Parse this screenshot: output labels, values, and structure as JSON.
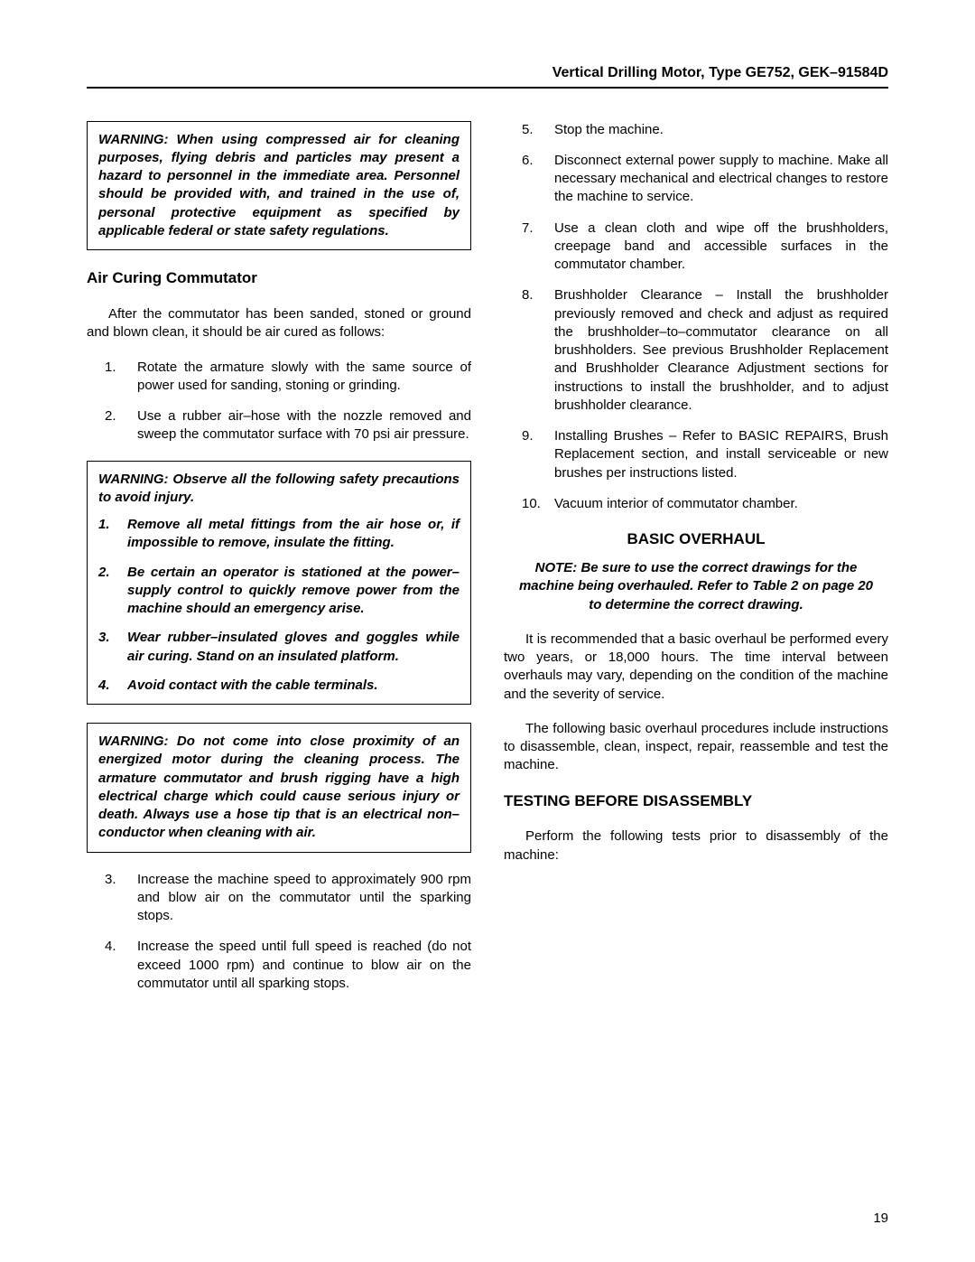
{
  "header": "Vertical Drilling Motor, Type GE752, GEK–91584D",
  "pageNumber": "19",
  "warning1": "WARNING: When using compressed air for cleaning purposes, flying debris and particles may present a hazard to personnel in the immediate area. Personnel should be provided with, and trained in the use of, personal protective equipment as specified by applicable federal or state safety regulations.",
  "sectionAirCuring": "Air Curing Commutator",
  "airCuringIntro": "After the commutator has been sanded, stoned or ground and blown clean, it should be air cured as follows:",
  "airSteps1": [
    {
      "n": "1.",
      "t": "Rotate the armature slowly with the same source of power used for sanding, stoning or grinding."
    },
    {
      "n": "2.",
      "t": "Use a rubber air–hose with the nozzle removed and sweep the commutator surface with 70 psi air pressure."
    }
  ],
  "warning2Intro": "WARNING: Observe all the following safety precautions to avoid injury.",
  "warning2Items": [
    {
      "n": "1.",
      "t": "Remove all metal fittings from the air hose or, if impossible to remove, insulate the fitting."
    },
    {
      "n": "2.",
      "t": "Be certain an operator is stationed at the power–supply control to quickly remove power from the machine should an emergency arise."
    },
    {
      "n": "3.",
      "t": "Wear rubber–insulated gloves and goggles while air curing. Stand on an insulated platform."
    },
    {
      "n": "4.",
      "t": "Avoid contact with the cable terminals."
    }
  ],
  "warning3": "WARNING: Do not come into close proximity of an energized motor during the cleaning process. The armature commutator and brush rigging have a high electrical charge which could cause serious injury or death. Always use a hose tip that is an electrical non–conductor when cleaning with air.",
  "airSteps2": [
    {
      "n": "3.",
      "t": "Increase the machine speed to approximately 900 rpm and blow air on the commutator until the sparking stops."
    },
    {
      "n": "4.",
      "t": "Increase the speed until full speed is reached (do not exceed 1000 rpm) and continue to blow air on the commutator until all sparking stops."
    },
    {
      "n": "5.",
      "t": "Stop the machine."
    },
    {
      "n": "6.",
      "t": "Disconnect external power supply to machine. Make all necessary mechanical and electrical changes to restore the machine to service."
    },
    {
      "n": "7.",
      "t": "Use a clean cloth and wipe off the brushholders, creepage band and accessible surfaces in the commutator chamber."
    },
    {
      "n": "8.",
      "t": "Brushholder Clearance – Install the brushholder previously removed and check and adjust as required the brushholder–to–commutator clearance on all brushholders. See previous Brushholder Replacement and Brushholder Clearance Adjustment sections for instructions to install the brushholder, and to adjust brushholder clearance."
    },
    {
      "n": "9.",
      "t": "Installing Brushes – Refer to BASIC REPAIRS, Brush Replacement section, and install serviceable or new brushes per instructions listed."
    },
    {
      "n": "10.",
      "t": "Vacuum interior of commutator chamber."
    }
  ],
  "sectionOverhaul": "BASIC OVERHAUL",
  "overhaulNote": "NOTE: Be sure to use the correct drawings for the machine being overhauled. Refer to Table 2 on page  20 to determine the correct drawing.",
  "overhaulP1": "It is recommended that a basic overhaul be performed every two years, or 18,000 hours. The time interval between overhauls may vary, depending on the condition of the machine and the severity of service.",
  "overhaulP2": "The following basic overhaul procedures include instructions to disassemble, clean, inspect, repair, reassemble and test the machine.",
  "sectionTesting": "TESTING BEFORE DISASSEMBLY",
  "testingP1": "Perform the following tests prior to disassembly of the machine:"
}
